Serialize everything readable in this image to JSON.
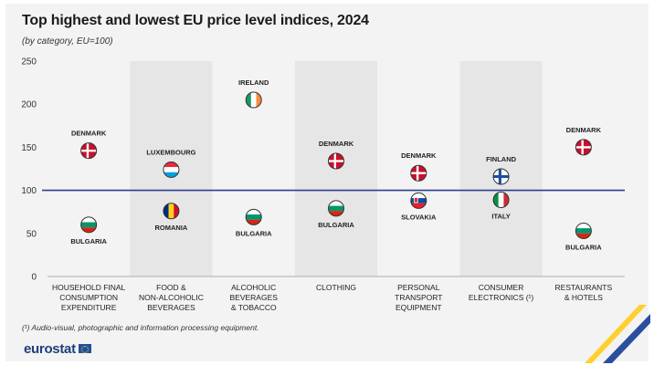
{
  "title": "Top highest and lowest EU price level indices, 2024",
  "subtitle": "(by category, EU=100)",
  "footnote": "(¹) Audio-visual, photographic and information processing equipment.",
  "logo": "eurostat",
  "chart_data": {
    "type": "scatter",
    "ylim": [
      0,
      250
    ],
    "yticks": [
      0,
      50,
      100,
      150,
      200,
      250
    ],
    "reference_line": 100,
    "categories": [
      [
        "HOUSEHOLD FINAL",
        "CONSUMPTION",
        "EXPENDITURE"
      ],
      [
        "FOOD &",
        "NON-ALCOHOLIC",
        "BEVERAGES"
      ],
      [
        "ALCOHOLIC",
        "BEVERAGES",
        "& TOBACCO"
      ],
      [
        "CLOTHING"
      ],
      [
        "PERSONAL",
        "TRANSPORT",
        "EQUIPMENT"
      ],
      [
        "CONSUMER",
        "ELECTRONICS (¹)"
      ],
      [
        "RESTAURANTS",
        "& HOTELS"
      ]
    ],
    "series": [
      {
        "name": "highest",
        "points": [
          {
            "country": "DENMARK",
            "value": 146,
            "flag": "denmark"
          },
          {
            "country": "LUXEMBOURG",
            "value": 124,
            "flag": "luxembourg"
          },
          {
            "country": "IRELAND",
            "value": 205,
            "flag": "ireland"
          },
          {
            "country": "DENMARK",
            "value": 134,
            "flag": "denmark"
          },
          {
            "country": "DENMARK",
            "value": 120,
            "flag": "denmark"
          },
          {
            "country": "FINLAND",
            "value": 116,
            "flag": "finland"
          },
          {
            "country": "DENMARK",
            "value": 150,
            "flag": "denmark"
          }
        ]
      },
      {
        "name": "lowest",
        "points": [
          {
            "country": "BULGARIA",
            "value": 60,
            "flag": "bulgaria"
          },
          {
            "country": "ROMANIA",
            "value": 76,
            "flag": "romania"
          },
          {
            "country": "BULGARIA",
            "value": 69,
            "flag": "bulgaria"
          },
          {
            "country": "BULGARIA",
            "value": 79,
            "flag": "bulgaria"
          },
          {
            "country": "SLOVAKIA",
            "value": 88,
            "flag": "slovakia"
          },
          {
            "country": "ITALY",
            "value": 89,
            "flag": "italy"
          },
          {
            "country": "BULGARIA",
            "value": 53,
            "flag": "bulgaria"
          }
        ]
      }
    ],
    "colors": {
      "reference_line": "#2c3e8c",
      "band": "#e6e6e6",
      "axis_text": "#333333"
    }
  }
}
